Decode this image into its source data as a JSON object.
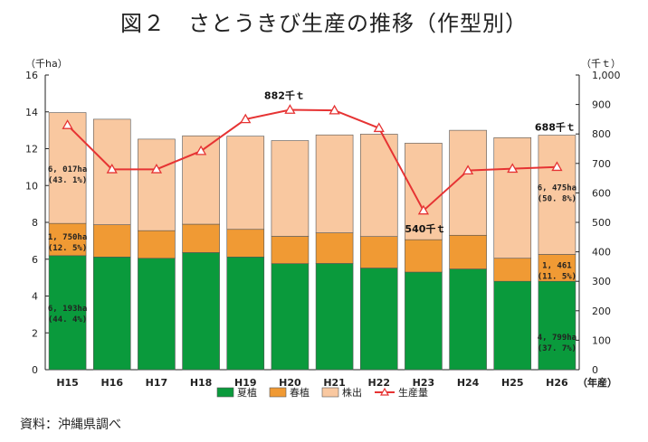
{
  "header": {
    "title": "図２　さとうきび生産の推移（作型別）"
  },
  "footer": {
    "source": "資料：沖縄県調べ"
  },
  "chart_data": {
    "type": "bar",
    "stacked": true,
    "categories": [
      "H15",
      "H16",
      "H17",
      "H18",
      "H19",
      "H20",
      "H21",
      "H22",
      "H23",
      "H24",
      "H25",
      "H26"
    ],
    "x_unit_label": "（年産）",
    "y_left": {
      "unit_label": "（千ha）",
      "ylim": [
        0,
        16
      ],
      "ticks": [
        "0",
        "2",
        "4",
        "6",
        "8",
        "10",
        "12",
        "14",
        "16"
      ]
    },
    "y_right": {
      "unit_label": "（千ｔ）",
      "ylim": [
        0,
        1000
      ],
      "ticks": [
        "0",
        "100",
        "200",
        "300",
        "400",
        "500",
        "600",
        "700",
        "800",
        "900",
        "1,000"
      ]
    },
    "series": [
      {
        "name": "夏植",
        "kind": "bar",
        "axis": "left",
        "color": "#0a9a3c",
        "values": [
          6.193,
          6.12,
          6.05,
          6.36,
          6.12,
          5.76,
          5.77,
          5.52,
          5.3,
          5.47,
          4.8,
          4.799
        ]
      },
      {
        "name": "春植",
        "kind": "bar",
        "axis": "left",
        "color": "#f09a34",
        "values": [
          1.75,
          1.75,
          1.5,
          1.54,
          1.5,
          1.48,
          1.66,
          1.71,
          1.76,
          1.83,
          1.25,
          1.461
        ]
      },
      {
        "name": "株出",
        "kind": "bar",
        "axis": "left",
        "color": "#f9c8a0",
        "values": [
          6.017,
          5.73,
          4.97,
          4.8,
          5.06,
          5.2,
          5.32,
          5.56,
          5.24,
          5.7,
          6.55,
          6.475
        ]
      },
      {
        "name": "生産量",
        "kind": "line",
        "axis": "right",
        "color": "#e63333",
        "values": [
          830,
          680,
          680,
          742,
          850,
          882,
          880,
          820,
          540,
          676,
          682,
          688
        ]
      }
    ],
    "legend": [
      "夏植",
      "春植",
      "株出",
      "生産量"
    ],
    "legend_position": "bottom",
    "grid": false,
    "annotations": {
      "H15_kabude": [
        "6, 017ha",
        "(43. 1%)"
      ],
      "H15_haru": [
        "1, 750ha",
        "(12. 5%)"
      ],
      "H15_natsu": [
        "6, 193ha",
        "(44. 4%)"
      ],
      "H26_kabude": [
        "6, 475ha",
        "(50. 8%)"
      ],
      "H26_haru": [
        "1, 461",
        "(11. 5%)"
      ],
      "H26_natsu": [
        "4, 799ha",
        "(37. 7%)"
      ],
      "H20_line": "882千ｔ",
      "H23_line": "540千ｔ",
      "H26_line": "688千ｔ"
    }
  }
}
